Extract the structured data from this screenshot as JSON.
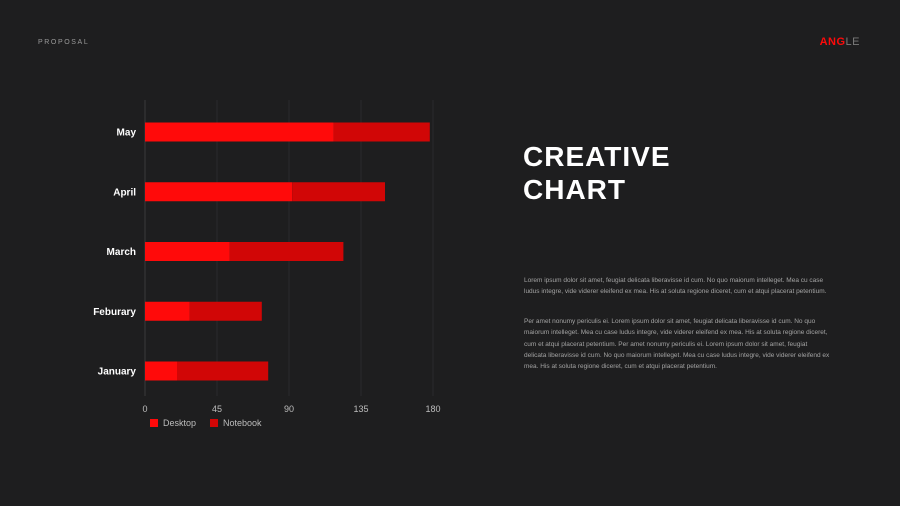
{
  "header": {
    "section_label": "PROPOSAL",
    "logo_accent": "ANG",
    "logo_rest": "LE"
  },
  "colors": {
    "background": "#1e1e1f",
    "desktop": "#ff0a0a",
    "notebook": "#d10606",
    "grid": "#2b2b2c",
    "accent": "#ff0a0a"
  },
  "title": {
    "line1": "CREATIVE",
    "line2": "CHART"
  },
  "paragraphs": [
    "Lorem ipsum dolor sit amet, feugiat delicata liberavisse id cum. No quo maiorum intelleget. Mea cu case ludus integre, vide viderer eleifend ex mea. His at soluta regione diceret, cum et atqui placerat petentium.",
    "Per amet nonumy periculis ei. Lorem ipsum dolor sit amet, feugiat delicata liberavisse id cum. No quo maiorum intelleget. Mea cu case ludus integre, vide viderer eleifend ex mea. His at soluta regione diceret, cum et atqui placerat petentium. Per amet nonumy periculis ei. Lorem ipsum dolor sit amet, feugiat delicata liberavisse id cum. No quo maiorum intelleget. Mea cu case ludus integre, vide viderer eleifend ex mea. His at soluta regione diceret, cum et atqui placerat petentium."
  ],
  "chart_data": {
    "type": "bar",
    "orientation": "horizontal",
    "stacked": true,
    "categories": [
      "May",
      "April",
      "March",
      "Feburary",
      "January"
    ],
    "series": [
      {
        "name": "Desktop",
        "values": [
          118,
          92,
          53,
          28,
          20
        ],
        "color": "#ff0a0a"
      },
      {
        "name": "Notebook",
        "values": [
          60,
          58,
          71,
          45,
          57
        ],
        "color": "#d10606"
      }
    ],
    "xlim": [
      0,
      180
    ],
    "xticks": [
      0,
      45,
      90,
      135,
      180
    ],
    "grid": true,
    "legend_position": "bottom-left"
  }
}
